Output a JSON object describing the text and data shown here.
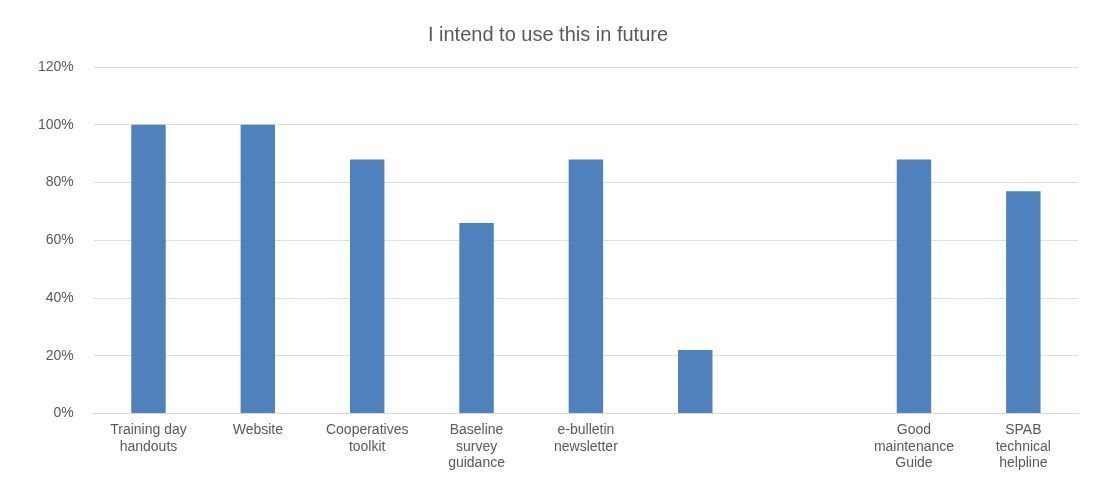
{
  "chart_data": {
    "type": "bar",
    "title": "I intend to use this in future",
    "categories": [
      "Training day handouts",
      "Website",
      "Cooperatives toolkit",
      "Baseline survey guidance",
      "e-bulletin newsletter",
      null,
      null,
      "Good maintenance Guide",
      "SPAB technical helpline"
    ],
    "values": [
      100,
      100,
      88,
      66,
      88,
      22,
      0,
      88,
      77
    ],
    "color": "#4f81bd",
    "ylim": [
      0,
      120
    ],
    "yticks": [
      {
        "value": 0,
        "label": "0%"
      },
      {
        "value": 20,
        "label": "20%"
      },
      {
        "value": 40,
        "label": "40%"
      },
      {
        "value": 60,
        "label": "60%"
      },
      {
        "value": 80,
        "label": "80%"
      },
      {
        "value": 100,
        "label": "100%"
      },
      {
        "value": 120,
        "label": "120%"
      }
    ],
    "grid": "y"
  }
}
